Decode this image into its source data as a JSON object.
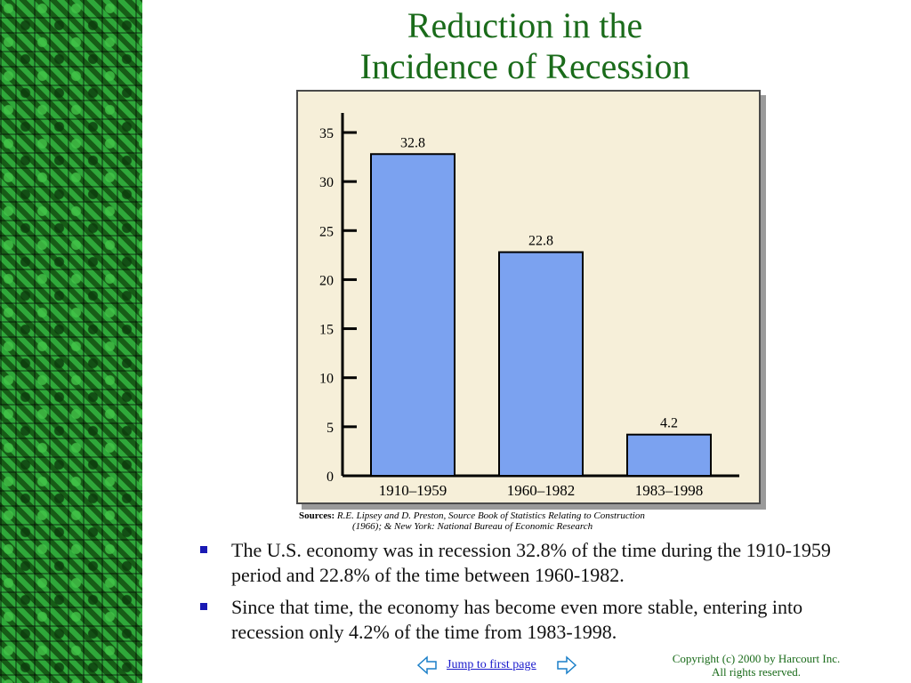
{
  "slide": {
    "title_line1": "Reduction in the",
    "title_line2": "Incidence of Recession"
  },
  "chart_data": {
    "type": "bar",
    "categories": [
      "1910–1959",
      "1960–1982",
      "1983–1998"
    ],
    "values": [
      32.8,
      22.8,
      4.2
    ],
    "value_labels": [
      "32.8",
      "22.8",
      "4.2"
    ],
    "ylim": [
      0,
      35
    ],
    "yticks": [
      0,
      5,
      10,
      15,
      20,
      25,
      30,
      35
    ],
    "title": "",
    "xlabel": "",
    "ylabel": "",
    "bar_color": "#7ba2f0",
    "background_color": "#f6efd9",
    "grid": false,
    "legend": "none"
  },
  "sources": {
    "label": "Sources:",
    "line1": "R.E. Lipsey and D. Preston, Source Book of Statistics Relating to Construction",
    "line2": "(1966);  & New York:  National Bureau of Economic Research"
  },
  "bullets": [
    "The U.S. economy was in recession 32.8% of the time during the 1910-1959 period and 22.8% of the time between 1960-1982.",
    "Since that time, the economy has become even more stable, entering into recession only 4.2% of the time from 1983-1998."
  ],
  "nav": {
    "prev_icon": "left-arrow-icon",
    "link_label": "Jump to first page",
    "next_icon": "right-arrow-icon"
  },
  "footer": {
    "copyright_line1": "Copyright (c) 2000 by Harcourt Inc.",
    "copyright_line2": "All rights reserved."
  },
  "colors": {
    "title": "#1a6b1a",
    "bullet": "#1a1ab4",
    "link": "#1a1acc"
  }
}
